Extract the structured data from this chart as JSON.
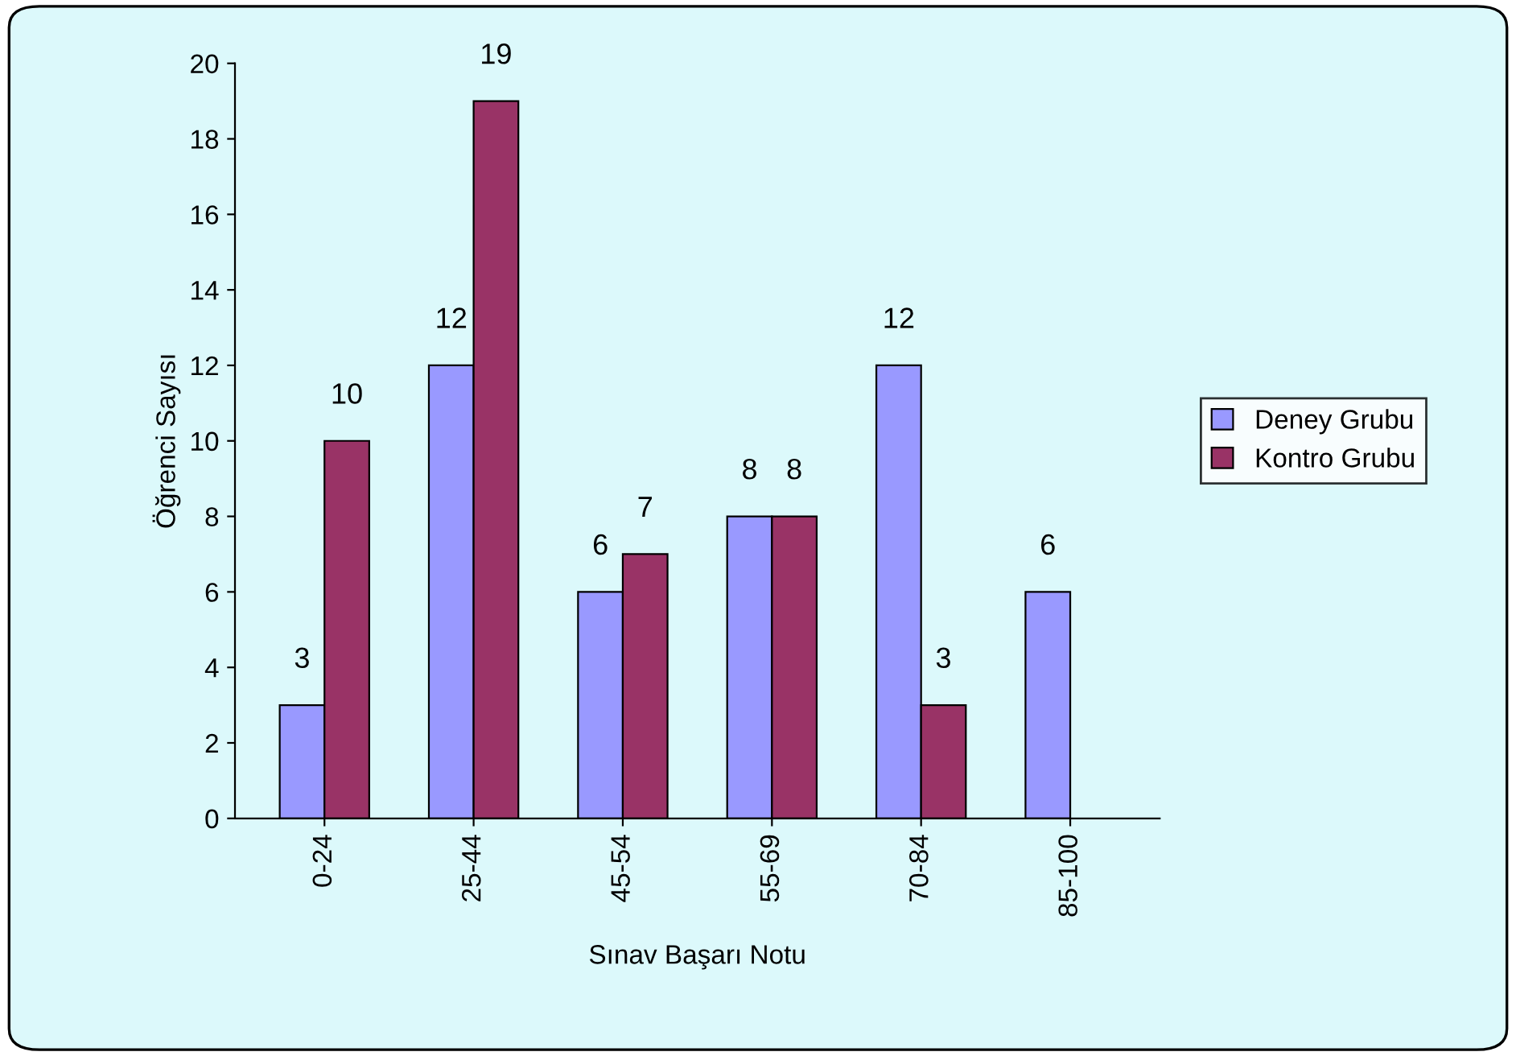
{
  "chart_data": {
    "type": "bar",
    "xlabel": "Sınav Başarı Notu",
    "ylabel": "Öğrenci Sayısı",
    "categories": [
      "0-24",
      "25-44",
      "45-54",
      "55-69",
      "70-84",
      "85-100"
    ],
    "series": [
      {
        "name": "Deney Grubu",
        "color": "#9999ff",
        "values": [
          3,
          12,
          6,
          8,
          12,
          6
        ]
      },
      {
        "name": "Kontro Grubu",
        "color": "#993366",
        "values": [
          10,
          19,
          7,
          8,
          3,
          null
        ]
      }
    ],
    "ylim": [
      0,
      20
    ],
    "yticks": [
      0,
      2,
      4,
      6,
      8,
      10,
      12,
      14,
      16,
      18,
      20
    ],
    "data_labels": true,
    "legend": "right",
    "grid": false
  }
}
